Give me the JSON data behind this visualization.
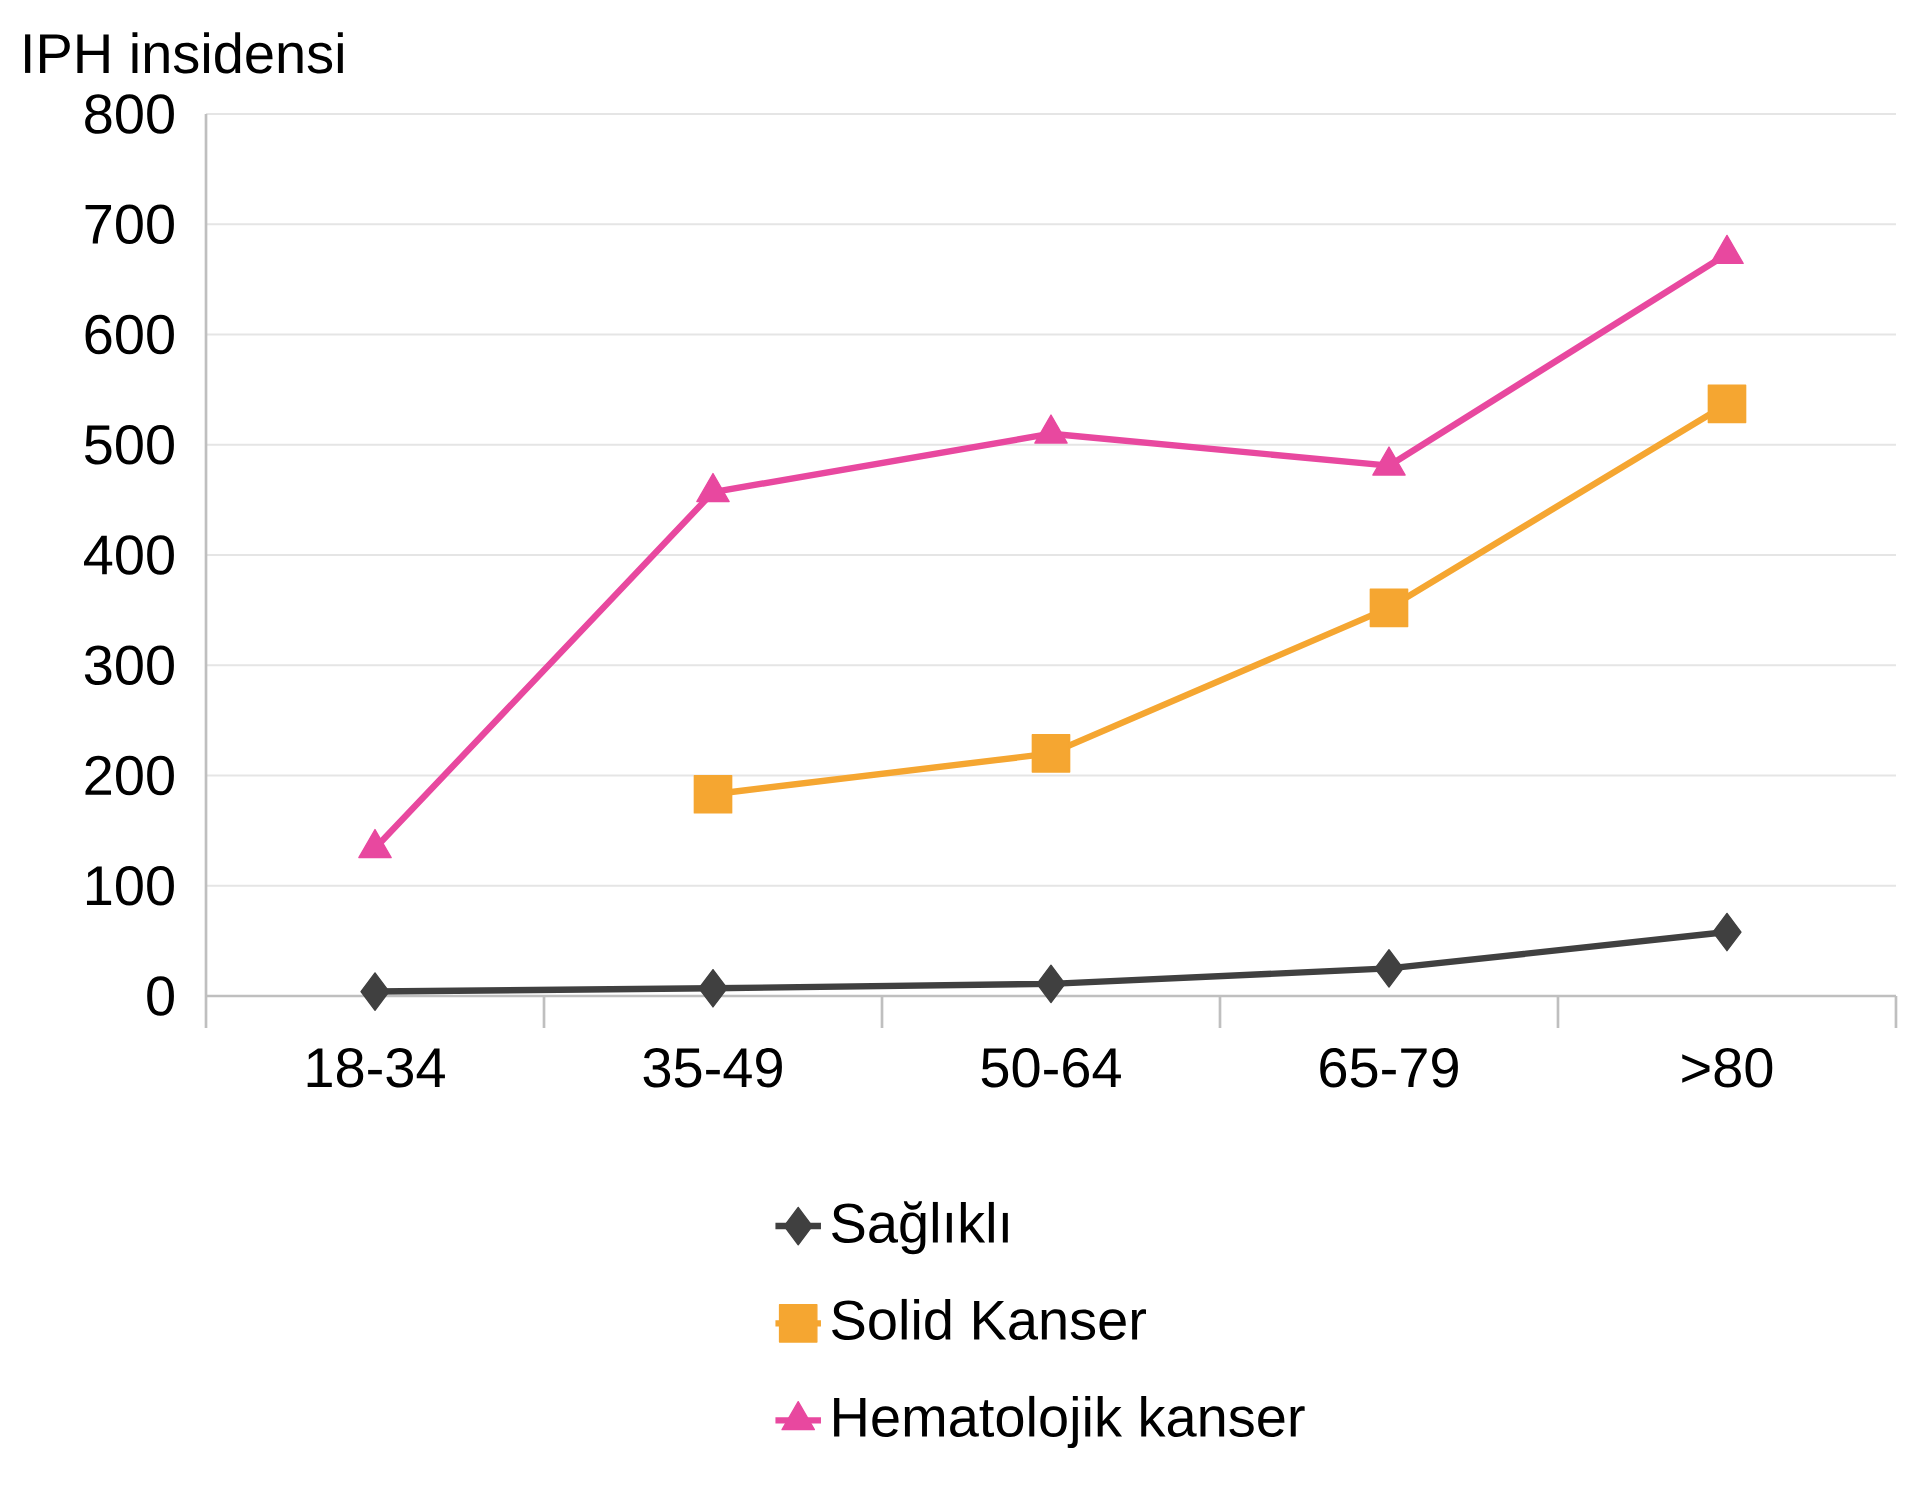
{
  "chart_data": {
    "type": "line",
    "ylabel": "IPH insidensi",
    "categories": [
      "18-34",
      "35-49",
      "50-64",
      "65-79",
      ">80"
    ],
    "series": [
      {
        "name": "Sağlıklı",
        "color": "#404040",
        "marker": "diamond",
        "values": [
          4,
          7,
          11,
          25,
          58
        ]
      },
      {
        "name": "Solid Kanser",
        "color": "#f5a631",
        "marker": "square",
        "values": [
          null,
          183,
          220,
          352,
          537
        ]
      },
      {
        "name": "Hematolojik kanser",
        "color": "#e8489f",
        "marker": "triangle",
        "values": [
          134,
          457,
          510,
          481,
          673
        ]
      }
    ],
    "ylim": [
      0,
      800
    ],
    "yticks": [
      0,
      100,
      200,
      300,
      400,
      500,
      600,
      700,
      800
    ],
    "grid": "y",
    "legend": "bottom",
    "line_style": "solid"
  }
}
